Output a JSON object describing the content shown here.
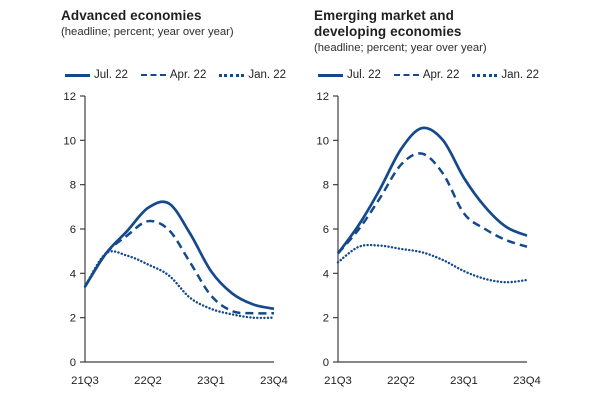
{
  "colors": {
    "line_blue": "#144a8c",
    "axis": "#3f3f3f",
    "text": "#1f1f1f"
  },
  "panels": [
    {
      "title": "Advanced economies",
      "subtitle": "(headline; percent; year over year)",
      "legend": [
        {
          "label": "Jul. 22",
          "style": "solid"
        },
        {
          "label": "Apr. 22",
          "style": "dashed"
        },
        {
          "label": "Jan. 22",
          "style": "dotted"
        }
      ]
    },
    {
      "title": "Emerging market and developing economies",
      "subtitle": "(headline; percent; year over year)",
      "legend": [
        {
          "label": "Jul. 22",
          "style": "solid"
        },
        {
          "label": "Apr. 22",
          "style": "dashed"
        },
        {
          "label": "Jan. 22",
          "style": "dotted"
        }
      ]
    }
  ],
  "chart_data": [
    {
      "type": "line",
      "title": "Advanced economies",
      "subtitle": "(headline; percent; year over year)",
      "x": [
        "21Q3",
        "21Q4",
        "22Q1",
        "22Q2",
        "22Q3",
        "22Q4",
        "23Q1",
        "23Q2",
        "23Q3",
        "23Q4"
      ],
      "x_tick_indices": [
        0,
        3,
        6,
        9
      ],
      "x_tick_labels": [
        "21Q3",
        "22Q2",
        "23Q1",
        "23Q4"
      ],
      "ylim": [
        0,
        12
      ],
      "y_ticks": [
        0,
        2,
        4,
        6,
        8,
        10,
        12
      ],
      "grid": false,
      "legend_position": "top",
      "series": [
        {
          "name": "Jul. 22",
          "style": "solid",
          "values": [
            3.4,
            4.9,
            5.9,
            6.95,
            7.15,
            5.8,
            4.1,
            3.1,
            2.6,
            2.4
          ]
        },
        {
          "name": "Apr. 22",
          "style": "dashed",
          "values": [
            3.4,
            4.9,
            5.7,
            6.35,
            5.95,
            4.5,
            3.0,
            2.3,
            2.2,
            2.2
          ]
        },
        {
          "name": "Jan. 22",
          "style": "dotted",
          "values": [
            3.4,
            4.9,
            4.8,
            4.4,
            3.9,
            2.9,
            2.4,
            2.15,
            2.0,
            2.0
          ]
        }
      ]
    },
    {
      "type": "line",
      "title": "Emerging market and developing economies",
      "subtitle": "(headline; percent; year over year)",
      "x": [
        "21Q3",
        "21Q4",
        "22Q1",
        "22Q2",
        "22Q3",
        "22Q4",
        "23Q1",
        "23Q2",
        "23Q3",
        "23Q4"
      ],
      "x_tick_indices": [
        0,
        3,
        6,
        9
      ],
      "x_tick_labels": [
        "21Q3",
        "22Q2",
        "23Q1",
        "23Q4"
      ],
      "ylim": [
        0,
        12
      ],
      "y_ticks": [
        0,
        2,
        4,
        6,
        8,
        10,
        12
      ],
      "grid": false,
      "legend_position": "top",
      "series": [
        {
          "name": "Jul. 22",
          "style": "solid",
          "values": [
            4.9,
            6.2,
            7.8,
            9.6,
            10.55,
            10.0,
            8.3,
            7.0,
            6.1,
            5.7
          ]
        },
        {
          "name": "Apr. 22",
          "style": "dashed",
          "values": [
            4.9,
            6.0,
            7.4,
            8.9,
            9.4,
            8.5,
            6.7,
            6.0,
            5.5,
            5.2
          ]
        },
        {
          "name": "Jan. 22",
          "style": "dotted",
          "values": [
            4.5,
            5.2,
            5.25,
            5.1,
            4.95,
            4.6,
            4.1,
            3.75,
            3.6,
            3.7
          ]
        }
      ]
    }
  ]
}
